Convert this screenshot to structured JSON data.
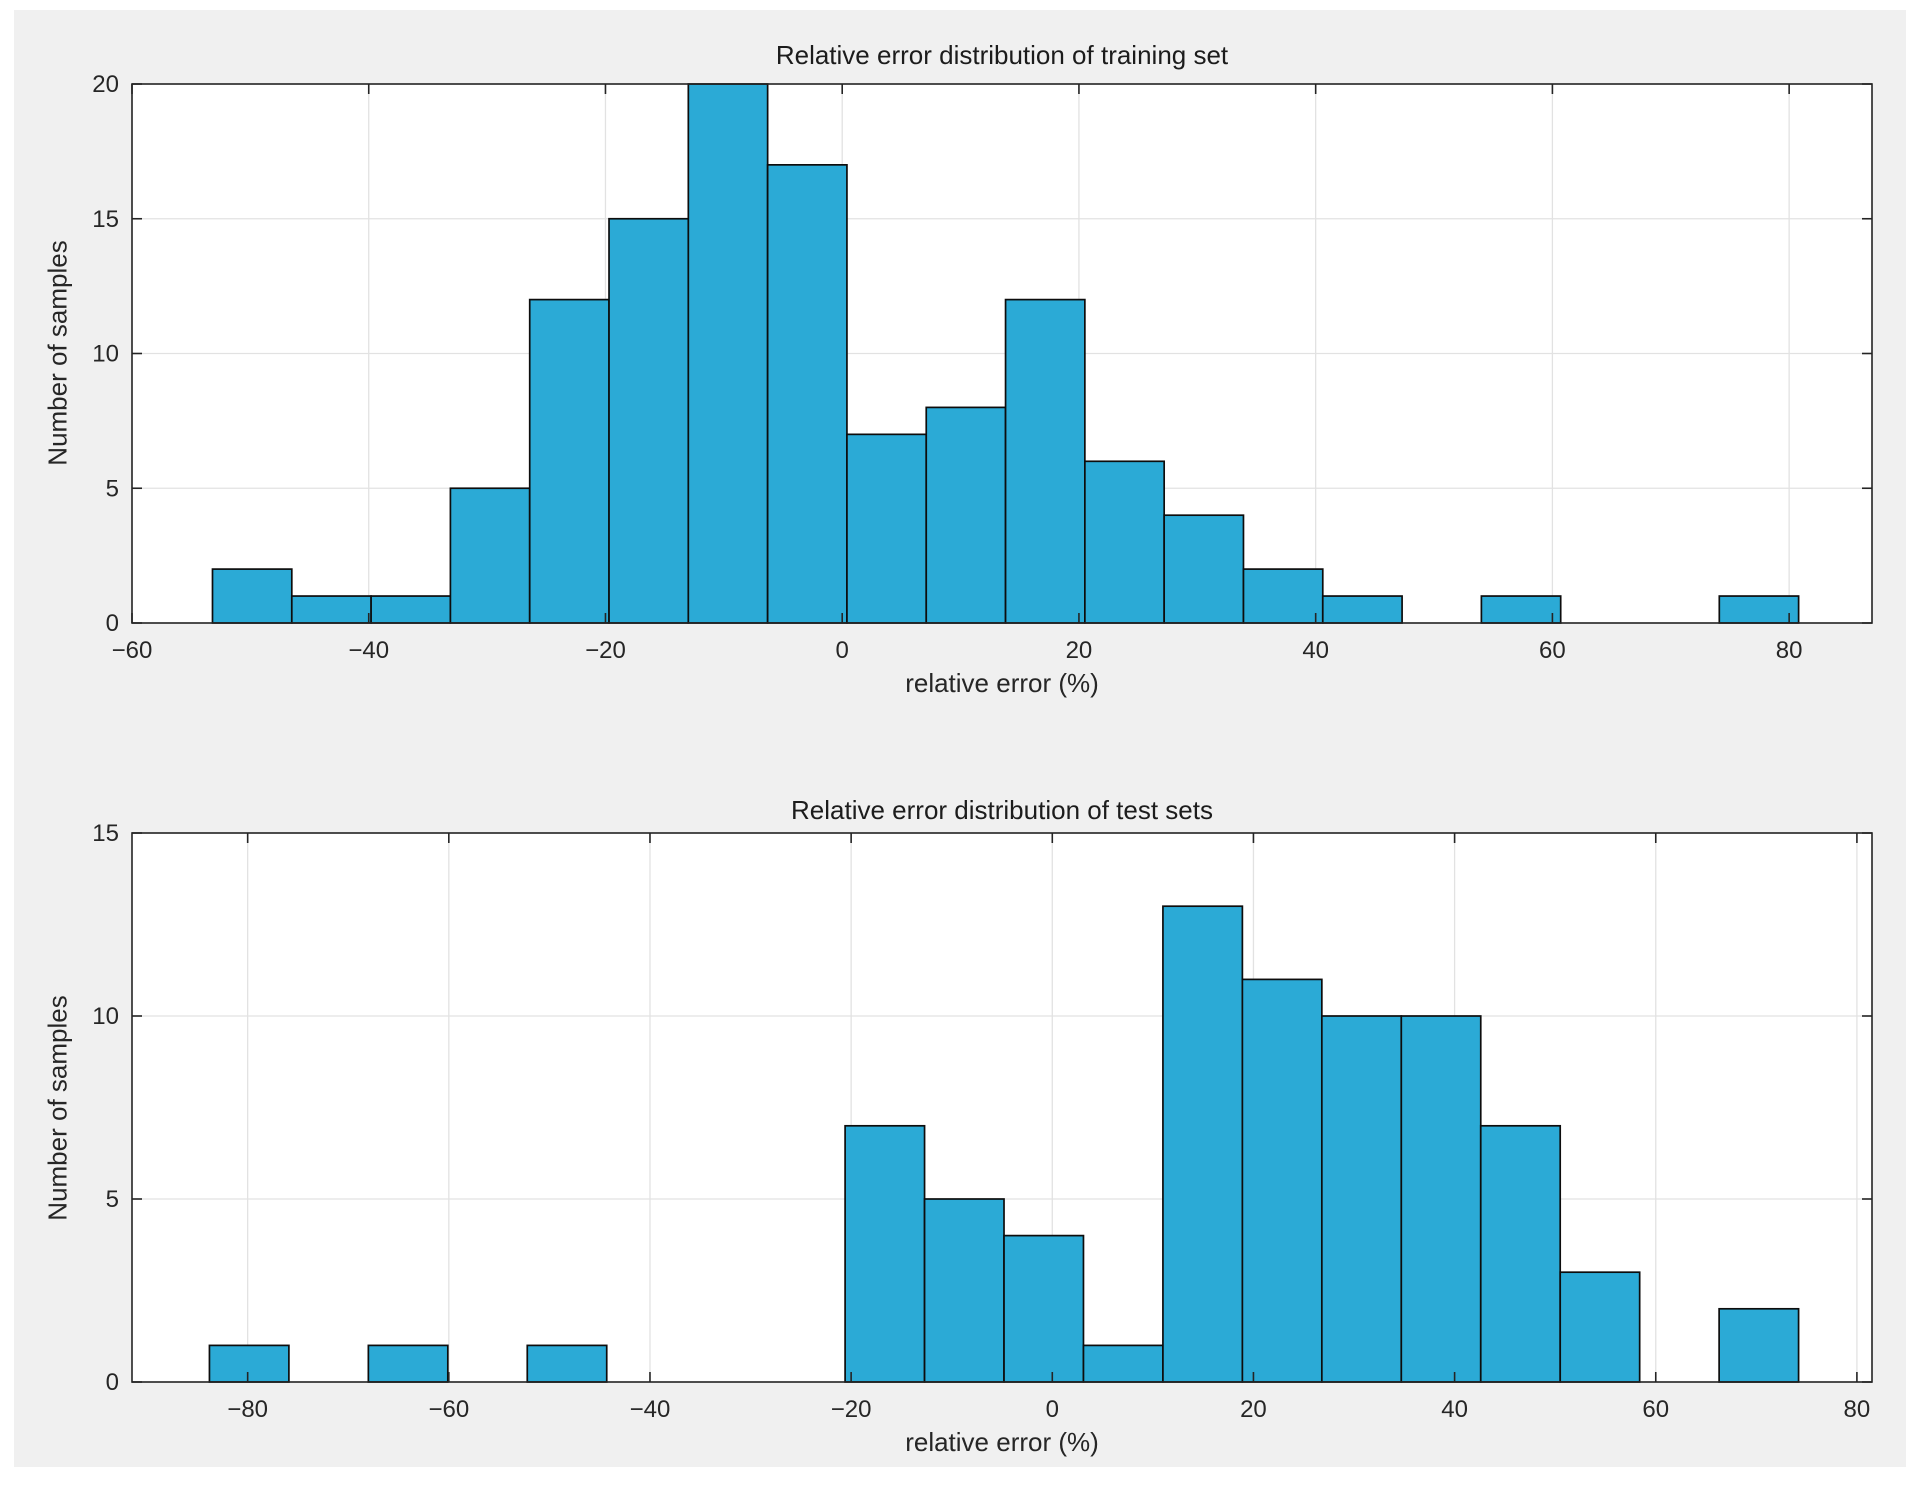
{
  "style": {
    "page_background": "#FFFFFF",
    "figure_background": "#F0F0F0",
    "plot_background": "#FFFFFF",
    "bar_fill": "#2BAAD6",
    "bar_edge": "#0D0D0D",
    "axis_color": "#242424",
    "grid_color": "#E2E2E2",
    "tick_label_color": "#262626"
  },
  "chart_data": [
    {
      "type": "bar",
      "subtype": "histogram",
      "title": "Relative error distribution of training set",
      "xlabel": "relative error (%)",
      "ylabel": "Number of samples",
      "bin_edges": [
        -53.2,
        -46.5,
        -39.8,
        -33.1,
        -26.4,
        -19.7,
        -13.0,
        -6.3,
        0.4,
        7.1,
        13.8,
        20.5,
        27.2,
        33.9,
        40.6,
        47.3,
        54.0,
        60.7,
        67.4,
        74.1,
        80.8
      ],
      "counts": [
        2,
        1,
        1,
        5,
        12,
        15,
        20,
        17,
        7,
        8,
        12,
        6,
        4,
        2,
        1,
        0,
        1,
        0,
        0,
        1
      ],
      "xlim": [
        -60,
        87
      ],
      "ylim": [
        0,
        20
      ],
      "xticks": [
        -60,
        -40,
        -20,
        0,
        20,
        40,
        60,
        80
      ],
      "yticks": [
        0,
        5,
        10,
        15,
        20
      ],
      "grid": true,
      "legend": null
    },
    {
      "type": "bar",
      "subtype": "histogram",
      "title": "Relative error distribution of test sets",
      "xlabel": "relative error (%)",
      "ylabel": "Number of samples",
      "bin_edges": [
        -83.8,
        -75.9,
        -68.0,
        -60.1,
        -52.2,
        -44.3,
        -36.4,
        -28.5,
        -20.6,
        -12.7,
        -4.8,
        3.1,
        11.0,
        18.9,
        26.8,
        34.7,
        42.6,
        50.5,
        58.4,
        66.3,
        74.2
      ],
      "counts": [
        1,
        0,
        1,
        0,
        1,
        0,
        0,
        0,
        7,
        5,
        4,
        1,
        13,
        11,
        10,
        10,
        7,
        3,
        0,
        2
      ],
      "xlim": [
        -91.5,
        81.5
      ],
      "ylim": [
        0,
        15
      ],
      "xticks": [
        -80,
        -60,
        -40,
        -20,
        0,
        20,
        40,
        60,
        80
      ],
      "yticks": [
        0,
        5,
        10,
        15
      ],
      "grid": true,
      "legend": null
    }
  ]
}
